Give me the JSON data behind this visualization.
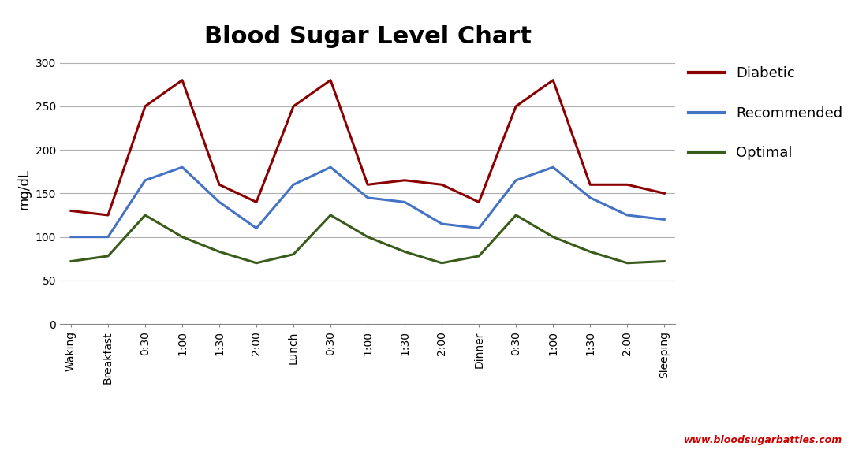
{
  "title": "Blood Sugar Level Chart",
  "ylabel": "mg/dL",
  "xlabels": [
    "Waking",
    "Breakfast",
    "0:30",
    "1:00",
    "1:30",
    "2:00",
    "Lunch",
    "0:30",
    "1:00",
    "1:30",
    "2:00",
    "Dinner",
    "0:30",
    "1:00",
    "1:30",
    "2:00",
    "Sleeping"
  ],
  "diabetic": [
    130,
    125,
    250,
    280,
    160,
    140,
    250,
    280,
    160,
    165,
    160,
    140,
    250,
    280,
    160,
    160,
    150
  ],
  "recommended": [
    100,
    100,
    165,
    180,
    140,
    110,
    160,
    180,
    145,
    140,
    115,
    110,
    165,
    180,
    145,
    125,
    120
  ],
  "optimal": [
    72,
    78,
    125,
    100,
    83,
    70,
    80,
    125,
    100,
    83,
    70,
    78,
    125,
    100,
    83,
    70,
    72
  ],
  "diabetic_color": "#8B0000",
  "recommended_color": "#4472C4",
  "optimal_color": "#3A5C1A",
  "ylim": [
    0,
    310
  ],
  "yticks": [
    0,
    50,
    100,
    150,
    200,
    250,
    300
  ],
  "background_color": "#FFFFFF",
  "grid_color": "#B0B0B0",
  "watermark": "www.bloodsugarbattles.com",
  "watermark_color": "#CC0000",
  "title_fontsize": 22,
  "legend_labels": [
    "Diabetic",
    "Recommended",
    "Optimal"
  ],
  "linewidth": 2.2,
  "tick_fontsize": 10,
  "ylabel_fontsize": 12
}
